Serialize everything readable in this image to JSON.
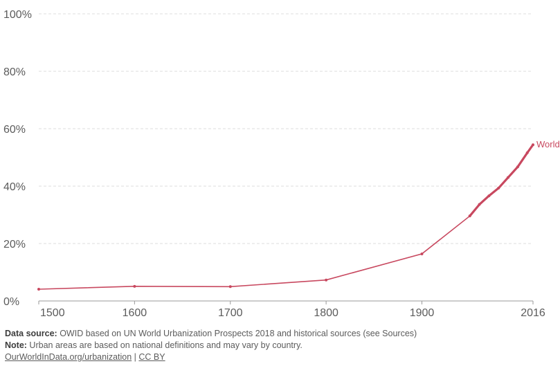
{
  "chart_data": {
    "type": "line",
    "x": [
      1500,
      1600,
      1700,
      1800,
      1900,
      1950,
      1960,
      1970,
      1980,
      1990,
      2000,
      2010,
      2016
    ],
    "series": [
      {
        "name": "World",
        "values": [
          4.1,
          5.1,
          5.0,
          7.3,
          16.4,
          29.6,
          33.6,
          36.6,
          39.3,
          43.0,
          46.7,
          51.6,
          54.4
        ]
      }
    ],
    "xticks": [
      "1500",
      "1600",
      "1700",
      "1800",
      "1900",
      "2016"
    ],
    "yticks": [
      "0%",
      "20%",
      "40%",
      "60%",
      "80%",
      "100%"
    ],
    "xlim": [
      1500,
      2016
    ],
    "ylim": [
      0,
      100
    ],
    "grid": true,
    "color": "#c8485f"
  },
  "footer": {
    "source_label": "Data source:",
    "source_text": " OWID based on UN World Urbanization Prospects 2018 and historical sources (see Sources)",
    "note_label": "Note:",
    "note_text": " Urban areas are based on national definitions and may vary by country.",
    "link_text": "OurWorldInData.org/urbanization",
    "separator": " | ",
    "license_text": "CC BY"
  }
}
